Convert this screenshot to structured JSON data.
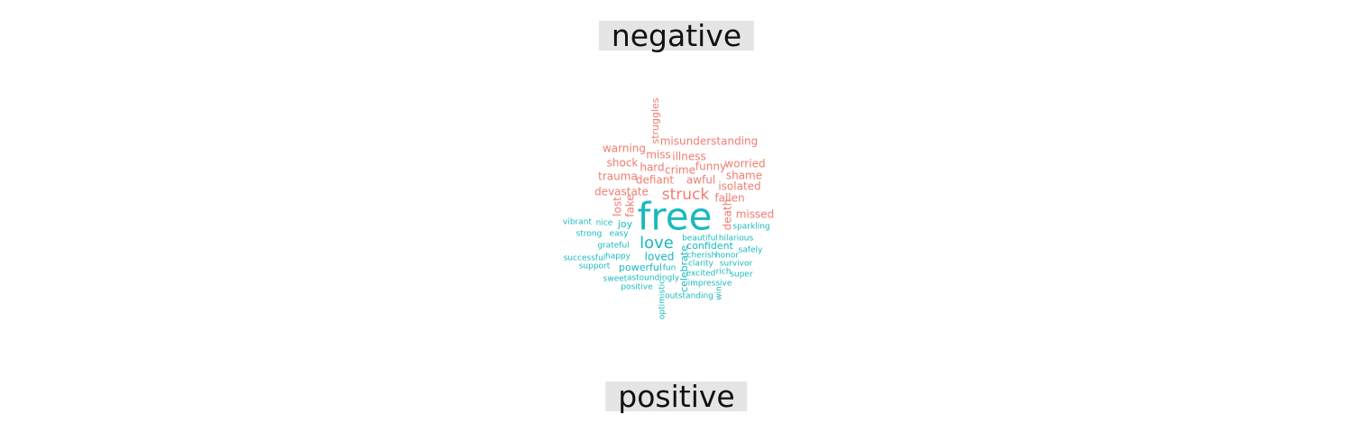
{
  "groups": {
    "negative": {
      "label": "negative",
      "color": "#f07d72"
    },
    "positive": {
      "label": "positive",
      "color": "#19b9bd"
    }
  },
  "words": [
    {
      "text": "struggles",
      "group": "negative",
      "rotated": true
    },
    {
      "text": "warning",
      "group": "negative",
      "rotated": false
    },
    {
      "text": "misunderstanding",
      "group": "negative",
      "rotated": false
    },
    {
      "text": "miss",
      "group": "negative",
      "rotated": false
    },
    {
      "text": "illness",
      "group": "negative",
      "rotated": false
    },
    {
      "text": "shock",
      "group": "negative",
      "rotated": false
    },
    {
      "text": "worried",
      "group": "negative",
      "rotated": false
    },
    {
      "text": "hard",
      "group": "negative",
      "rotated": false
    },
    {
      "text": "crime",
      "group": "negative",
      "rotated": false
    },
    {
      "text": "funny",
      "group": "negative",
      "rotated": false
    },
    {
      "text": "trauma",
      "group": "negative",
      "rotated": false
    },
    {
      "text": "shame",
      "group": "negative",
      "rotated": false
    },
    {
      "text": "defiant",
      "group": "negative",
      "rotated": false
    },
    {
      "text": "awful",
      "group": "negative",
      "rotated": false
    },
    {
      "text": "isolated",
      "group": "negative",
      "rotated": false
    },
    {
      "text": "devastate",
      "group": "negative",
      "rotated": false
    },
    {
      "text": "struck",
      "group": "negative",
      "rotated": false
    },
    {
      "text": "fallen",
      "group": "negative",
      "rotated": false
    },
    {
      "text": "lost",
      "group": "negative",
      "rotated": true
    },
    {
      "text": "fake",
      "group": "negative",
      "rotated": true
    },
    {
      "text": "death",
      "group": "negative",
      "rotated": true
    },
    {
      "text": "missed",
      "group": "negative",
      "rotated": false
    },
    {
      "text": "free",
      "group": "positive",
      "rotated": false
    },
    {
      "text": "vibrant",
      "group": "positive",
      "rotated": false
    },
    {
      "text": "nice",
      "group": "positive",
      "rotated": false
    },
    {
      "text": "joy",
      "group": "positive",
      "rotated": false
    },
    {
      "text": "sparkling",
      "group": "positive",
      "rotated": false
    },
    {
      "text": "strong",
      "group": "positive",
      "rotated": false
    },
    {
      "text": "easy",
      "group": "positive",
      "rotated": false
    },
    {
      "text": "love",
      "group": "positive",
      "rotated": false
    },
    {
      "text": "beautiful",
      "group": "positive",
      "rotated": false
    },
    {
      "text": "hilarious",
      "group": "positive",
      "rotated": false
    },
    {
      "text": "grateful",
      "group": "positive",
      "rotated": false
    },
    {
      "text": "confident",
      "group": "positive",
      "rotated": false
    },
    {
      "text": "safely",
      "group": "positive",
      "rotated": false
    },
    {
      "text": "successful",
      "group": "positive",
      "rotated": false
    },
    {
      "text": "happy",
      "group": "positive",
      "rotated": false
    },
    {
      "text": "loved",
      "group": "positive",
      "rotated": false
    },
    {
      "text": "cherish",
      "group": "positive",
      "rotated": false
    },
    {
      "text": "honor",
      "group": "positive",
      "rotated": false
    },
    {
      "text": "support",
      "group": "positive",
      "rotated": false
    },
    {
      "text": "powerful",
      "group": "positive",
      "rotated": false
    },
    {
      "text": "fun",
      "group": "positive",
      "rotated": false
    },
    {
      "text": "clarity",
      "group": "positive",
      "rotated": false
    },
    {
      "text": "survivor",
      "group": "positive",
      "rotated": false
    },
    {
      "text": "celebrate",
      "group": "positive",
      "rotated": true
    },
    {
      "text": "excited",
      "group": "positive",
      "rotated": false
    },
    {
      "text": "rich",
      "group": "positive",
      "rotated": false
    },
    {
      "text": "super",
      "group": "positive",
      "rotated": false
    },
    {
      "text": "sweet",
      "group": "positive",
      "rotated": false
    },
    {
      "text": "astoundingly",
      "group": "positive",
      "rotated": false
    },
    {
      "text": "impressive",
      "group": "positive",
      "rotated": false
    },
    {
      "text": "positive",
      "group": "positive",
      "rotated": false
    },
    {
      "text": "win",
      "group": "positive",
      "rotated": true
    },
    {
      "text": "optimistic",
      "group": "positive",
      "rotated": true
    },
    {
      "text": "outstanding",
      "group": "positive",
      "rotated": false
    }
  ]
}
